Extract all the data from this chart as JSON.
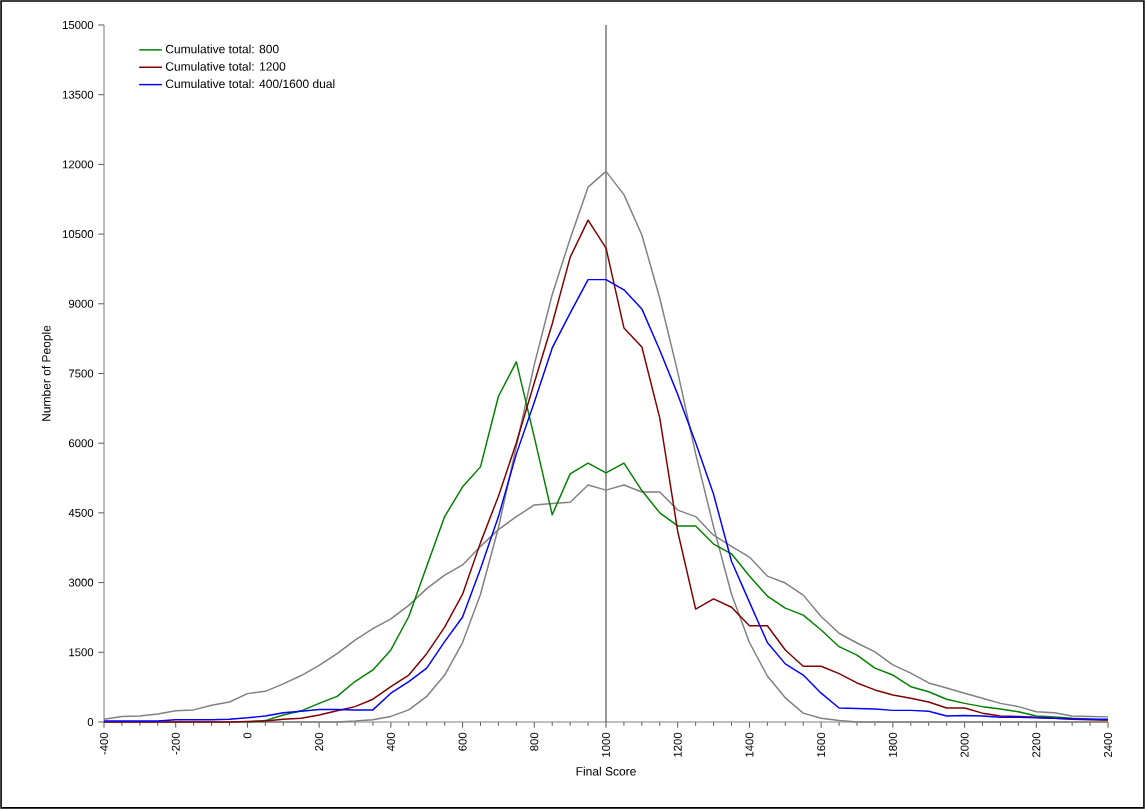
{
  "chart_data": {
    "type": "line",
    "xlabel": "Final Score",
    "ylabel": "Number of People",
    "x": [
      -400,
      -350,
      -300,
      -250,
      -200,
      -150,
      -100,
      -50,
      0,
      50,
      100,
      150,
      200,
      250,
      300,
      350,
      400,
      450,
      500,
      550,
      600,
      650,
      700,
      750,
      800,
      850,
      900,
      950,
      1000,
      1050,
      1100,
      1150,
      1200,
      1250,
      1300,
      1350,
      1400,
      1450,
      1500,
      1550,
      1600,
      1650,
      1700,
      1750,
      1800,
      1850,
      1900,
      1950,
      2000,
      2050,
      2100,
      2150,
      2200,
      2250,
      2300,
      2350,
      2400
    ],
    "series": [
      {
        "color": "#808080",
        "values": [
          60,
          120,
          130,
          170,
          240,
          260,
          360,
          430,
          610,
          660,
          820,
          1000,
          1220,
          1470,
          1760,
          2010,
          2220,
          2510,
          2870,
          3160,
          3380,
          3780,
          4140,
          4420,
          4670,
          4700,
          4730,
          5100,
          4990,
          5100,
          4950,
          4950,
          4560,
          4420,
          4020,
          3780,
          3550,
          3140,
          2990,
          2730,
          2270,
          1910,
          1700,
          1510,
          1230,
          1050,
          840,
          730,
          620,
          510,
          400,
          330,
          220,
          200,
          130,
          120,
          110
        ]
      },
      {
        "color": "#808080",
        "values": [
          0,
          0,
          0,
          0,
          0,
          0,
          0,
          0,
          0,
          0,
          0,
          0,
          0,
          0,
          20,
          50,
          120,
          260,
          550,
          1010,
          1710,
          2750,
          4180,
          5940,
          7690,
          9200,
          10400,
          11510,
          11850,
          11350,
          10480,
          9120,
          7530,
          5770,
          4200,
          2750,
          1710,
          990,
          520,
          190,
          80,
          30,
          0,
          0,
          0,
          0,
          0,
          0,
          0,
          0,
          0,
          0,
          0,
          0,
          0,
          0,
          0
        ]
      },
      {
        "name": "Cumulative total: 800",
        "color": "#008000",
        "values": [
          null,
          null,
          null,
          null,
          null,
          null,
          null,
          null,
          0,
          30,
          150,
          240,
          400,
          550,
          870,
          1120,
          1550,
          2270,
          3350,
          4420,
          5060,
          5490,
          7010,
          7750,
          6130,
          4460,
          5340,
          5570,
          5360,
          5570,
          4980,
          4500,
          4220,
          4220,
          3830,
          3620,
          3140,
          2710,
          2450,
          2300,
          1980,
          1620,
          1440,
          1160,
          1010,
          760,
          650,
          490,
          400,
          330,
          280,
          220,
          130,
          110,
          80,
          60,
          40
        ]
      },
      {
        "name": "Cumulative total: 1200",
        "color": "#800000",
        "values": [
          0,
          0,
          0,
          0,
          0,
          0,
          0,
          0,
          10,
          20,
          60,
          80,
          150,
          240,
          330,
          490,
          760,
          1010,
          1470,
          2040,
          2750,
          3860,
          4860,
          6010,
          7300,
          8570,
          10000,
          10800,
          10200,
          8480,
          8070,
          6540,
          4100,
          2430,
          2650,
          2470,
          2070,
          2070,
          1550,
          1200,
          1200,
          1040,
          840,
          690,
          580,
          510,
          430,
          300,
          300,
          190,
          130,
          120,
          100,
          80,
          60,
          50,
          40
        ]
      },
      {
        "name": "Cumulative total: 400/1600 dual",
        "color": "#0000ff",
        "values": [
          20,
          20,
          20,
          20,
          50,
          50,
          50,
          60,
          90,
          130,
          200,
          230,
          270,
          270,
          260,
          260,
          620,
          870,
          1160,
          1730,
          2260,
          3300,
          4420,
          5770,
          6880,
          8050,
          8800,
          9520,
          9520,
          9300,
          8890,
          8000,
          7050,
          6010,
          4900,
          3460,
          2580,
          1710,
          1250,
          1010,
          620,
          300,
          290,
          280,
          250,
          250,
          230,
          130,
          140,
          130,
          100,
          100,
          90,
          80,
          70,
          60,
          60
        ]
      }
    ],
    "xlim": [
      -400,
      2400
    ],
    "ylim": [
      0,
      15000
    ],
    "xticks": [
      -400,
      -200,
      0,
      200,
      400,
      600,
      800,
      1000,
      1200,
      1400,
      1600,
      1800,
      2000,
      2200,
      2400
    ],
    "yticks": [
      0,
      1500,
      3000,
      4500,
      6000,
      7500,
      9000,
      10500,
      12000,
      13500,
      15000
    ],
    "ref_lines": [
      {
        "axis": "x",
        "value": 1000,
        "color": "#000000"
      }
    ],
    "legend": "top left",
    "marker": "none",
    "grid": false
  }
}
